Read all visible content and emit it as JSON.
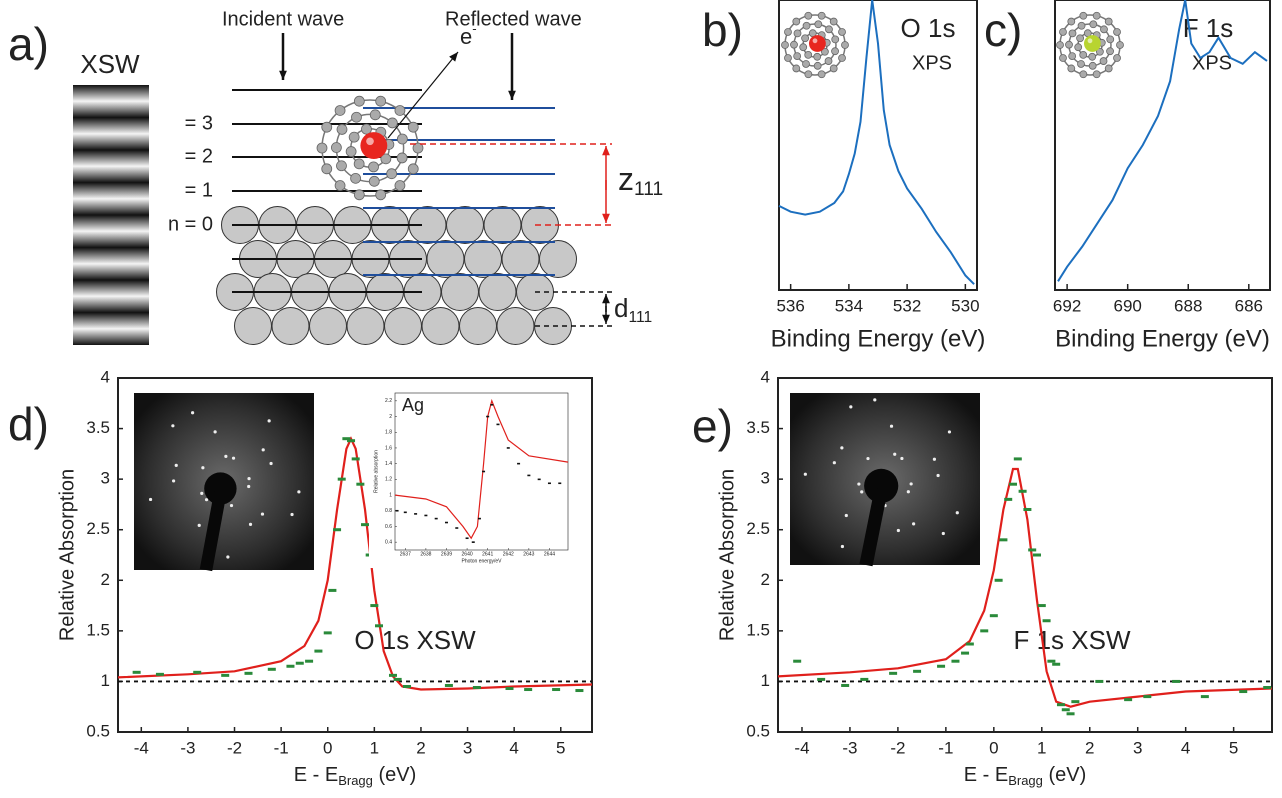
{
  "panel_labels": [
    "a)",
    "b)",
    "c)",
    "d)",
    "e)"
  ],
  "diagram": {
    "xsw_label": "XSW",
    "incident_label": "Incident wave",
    "reflected_label": "Reflected wave",
    "electron_label": {
      "text": "e",
      "superscript": "-"
    },
    "order_labels": [
      "= 3",
      "= 2",
      "= 1",
      "n = 0"
    ],
    "z_label": {
      "text": "z",
      "subscript": "111"
    },
    "d_label": {
      "text": "d",
      "subscript": "111"
    }
  },
  "chart_data": [
    {
      "type": "line",
      "title": "O 1s",
      "subtitle": "XPS",
      "xlabel": "Binding Energy (eV)",
      "color": "#1c6fbf",
      "x": [
        536.4,
        536.0,
        535.5,
        535.0,
        534.5,
        534.2,
        534.0,
        533.8,
        533.6,
        533.4,
        533.2,
        533.0,
        532.8,
        532.6,
        532.3,
        532.0,
        531.5,
        531.0,
        530.5,
        530.0,
        529.7
      ],
      "values": [
        0.29,
        0.27,
        0.26,
        0.27,
        0.3,
        0.34,
        0.4,
        0.47,
        0.58,
        0.8,
        1.0,
        0.85,
        0.62,
        0.5,
        0.41,
        0.35,
        0.28,
        0.2,
        0.13,
        0.05,
        0.02
      ],
      "xlim": [
        536.4,
        529.6
      ],
      "ylim": [
        0,
        1
      ],
      "xticks": [
        536,
        534,
        532,
        530
      ]
    },
    {
      "type": "line",
      "title": "F 1s",
      "subtitle": "XPS",
      "xlabel": "Binding Energy (eV)",
      "color": "#1c6fbf",
      "x": [
        692.3,
        692.0,
        691.5,
        691.0,
        690.5,
        690.0,
        689.5,
        689.0,
        688.6,
        688.3,
        688.1,
        687.9,
        687.6,
        687.3,
        687.0,
        686.6,
        686.2,
        685.8,
        685.4
      ],
      "values": [
        0.03,
        0.08,
        0.15,
        0.23,
        0.31,
        0.42,
        0.5,
        0.6,
        0.72,
        0.9,
        1.0,
        0.85,
        0.8,
        0.82,
        0.87,
        0.8,
        0.78,
        0.82,
        0.79
      ],
      "xlim": [
        692.4,
        685.3
      ],
      "ylim": [
        0,
        1
      ],
      "xticks": [
        692,
        690,
        688,
        686
      ]
    },
    {
      "type": "xsw",
      "title": "O 1s XSW",
      "ylabel": "Relative Absorption",
      "xlabel": {
        "main": "E - E",
        "subscript": "Bragg",
        "suffix": " (eV)"
      },
      "xlim": [
        -4.5,
        5.67
      ],
      "ylim": [
        0.5,
        4
      ],
      "xticks": [
        -4,
        -3,
        -2,
        -1,
        0,
        1,
        2,
        3,
        4,
        5
      ],
      "yticks": [
        0.5,
        1,
        1.5,
        2,
        2.5,
        3,
        3.5,
        4
      ],
      "reference_line": 1,
      "fit": {
        "color": "#e0201c",
        "x": [
          -4.5,
          -3,
          -2,
          -1,
          -0.5,
          -0.2,
          0,
          0.2,
          0.4,
          0.5,
          0.6,
          0.8,
          1.0,
          1.2,
          1.4,
          1.6,
          2,
          3,
          4,
          5.67
        ],
        "values": [
          1.04,
          1.07,
          1.1,
          1.2,
          1.35,
          1.6,
          2.0,
          2.7,
          3.3,
          3.4,
          3.3,
          2.7,
          1.9,
          1.3,
          1.05,
          0.95,
          0.92,
          0.93,
          0.95,
          0.97
        ]
      },
      "points": {
        "color": "#2a8a3a",
        "x": [
          -4.1,
          -3.6,
          -2.8,
          -2.2,
          -1.7,
          -1.2,
          -0.8,
          -0.6,
          -0.4,
          -0.2,
          0,
          0.1,
          0.2,
          0.3,
          0.4,
          0.5,
          0.6,
          0.7,
          0.8,
          0.9,
          1.0,
          1.1,
          1.4,
          1.5,
          1.7,
          2.6,
          3.2,
          3.9,
          4.3,
          4.9,
          5.4
        ],
        "values": [
          1.09,
          1.07,
          1.09,
          1.06,
          1.08,
          1.12,
          1.15,
          1.18,
          1.2,
          1.3,
          1.48,
          1.9,
          2.5,
          3.0,
          3.4,
          3.38,
          3.2,
          2.95,
          2.55,
          2.25,
          1.75,
          1.55,
          1.06,
          1.02,
          0.95,
          0.96,
          0.94,
          0.93,
          0.92,
          0.92,
          0.91
        ]
      }
    },
    {
      "type": "xsw",
      "title": "Ag",
      "ylabel": "Relative absorption",
      "xlabel": "Photon energy/eV",
      "xlim": [
        2636.5,
        2644.9
      ],
      "ylim": [
        0.3,
        2.3
      ],
      "xticks": [
        2637,
        2638,
        2639,
        2640,
        2641,
        2642,
        2643,
        2644
      ],
      "yticks": [
        0.4,
        0.6,
        0.8,
        1,
        1.2,
        1.4,
        1.6,
        1.8,
        2,
        2.2
      ],
      "fit": {
        "color": "#e0201c",
        "x": [
          2636.5,
          2638,
          2639,
          2639.8,
          2640.2,
          2640.5,
          2640.8,
          2641,
          2641.2,
          2641.5,
          2642,
          2643,
          2644.9
        ],
        "values": [
          1.0,
          0.95,
          0.85,
          0.6,
          0.45,
          0.6,
          1.4,
          2.0,
          2.2,
          2.0,
          1.7,
          1.5,
          1.42
        ]
      },
      "points": {
        "color": "#111111",
        "x": [
          2636.6,
          2637,
          2637.5,
          2638,
          2638.5,
          2639,
          2639.5,
          2640,
          2640.3,
          2640.6,
          2640.8,
          2641,
          2641.2,
          2641.5,
          2642,
          2642.5,
          2643,
          2643.5,
          2644,
          2644.5
        ],
        "values": [
          0.8,
          0.78,
          0.76,
          0.74,
          0.7,
          0.65,
          0.58,
          0.45,
          0.4,
          0.7,
          1.3,
          2.0,
          2.15,
          1.9,
          1.6,
          1.4,
          1.25,
          1.2,
          1.15,
          1.15
        ]
      }
    },
    {
      "type": "xsw",
      "title": "F 1s XSW",
      "ylabel": "Relative Absorption",
      "xlabel": {
        "main": "E - E",
        "subscript": "Bragg",
        "suffix": " (eV)"
      },
      "xlim": [
        -4.5,
        5.8
      ],
      "ylim": [
        0.5,
        4
      ],
      "xticks": [
        -4,
        -3,
        -2,
        -1,
        0,
        1,
        2,
        3,
        4,
        5
      ],
      "yticks": [
        0.5,
        1,
        1.5,
        2,
        2.5,
        3,
        3.5,
        4
      ],
      "reference_line": 1,
      "fit": {
        "color": "#e0201c",
        "x": [
          -4.5,
          -3,
          -2,
          -1,
          -0.5,
          -0.2,
          0,
          0.2,
          0.4,
          0.5,
          0.7,
          0.9,
          1.1,
          1.3,
          1.6,
          2,
          3,
          4,
          5.8
        ],
        "values": [
          1.05,
          1.09,
          1.13,
          1.22,
          1.4,
          1.7,
          2.1,
          2.7,
          3.1,
          3.1,
          2.6,
          1.8,
          1.1,
          0.8,
          0.75,
          0.8,
          0.85,
          0.9,
          0.93
        ]
      },
      "points": {
        "color": "#2a8a3a",
        "x": [
          -4.1,
          -3.6,
          -3.1,
          -2.7,
          -2.1,
          -1.6,
          -1.1,
          -0.8,
          -0.6,
          -0.5,
          -0.2,
          0,
          0.1,
          0.2,
          0.3,
          0.4,
          0.5,
          0.6,
          0.7,
          0.8,
          0.9,
          1.0,
          1.1,
          1.2,
          1.3,
          1.4,
          1.5,
          1.6,
          1.7,
          2.2,
          2.8,
          3.2,
          3.8,
          4.4,
          5.2,
          5.7
        ],
        "values": [
          1.2,
          1.02,
          0.96,
          1.02,
          1.08,
          1.1,
          1.15,
          1.2,
          1.28,
          1.37,
          1.5,
          1.65,
          2.0,
          2.4,
          2.8,
          2.95,
          3.2,
          2.88,
          2.7,
          2.3,
          2.25,
          1.75,
          1.6,
          1.2,
          1.17,
          0.77,
          0.72,
          0.68,
          0.8,
          1.0,
          0.82,
          0.85,
          1.0,
          0.85,
          0.9,
          0.94
        ]
      }
    }
  ]
}
